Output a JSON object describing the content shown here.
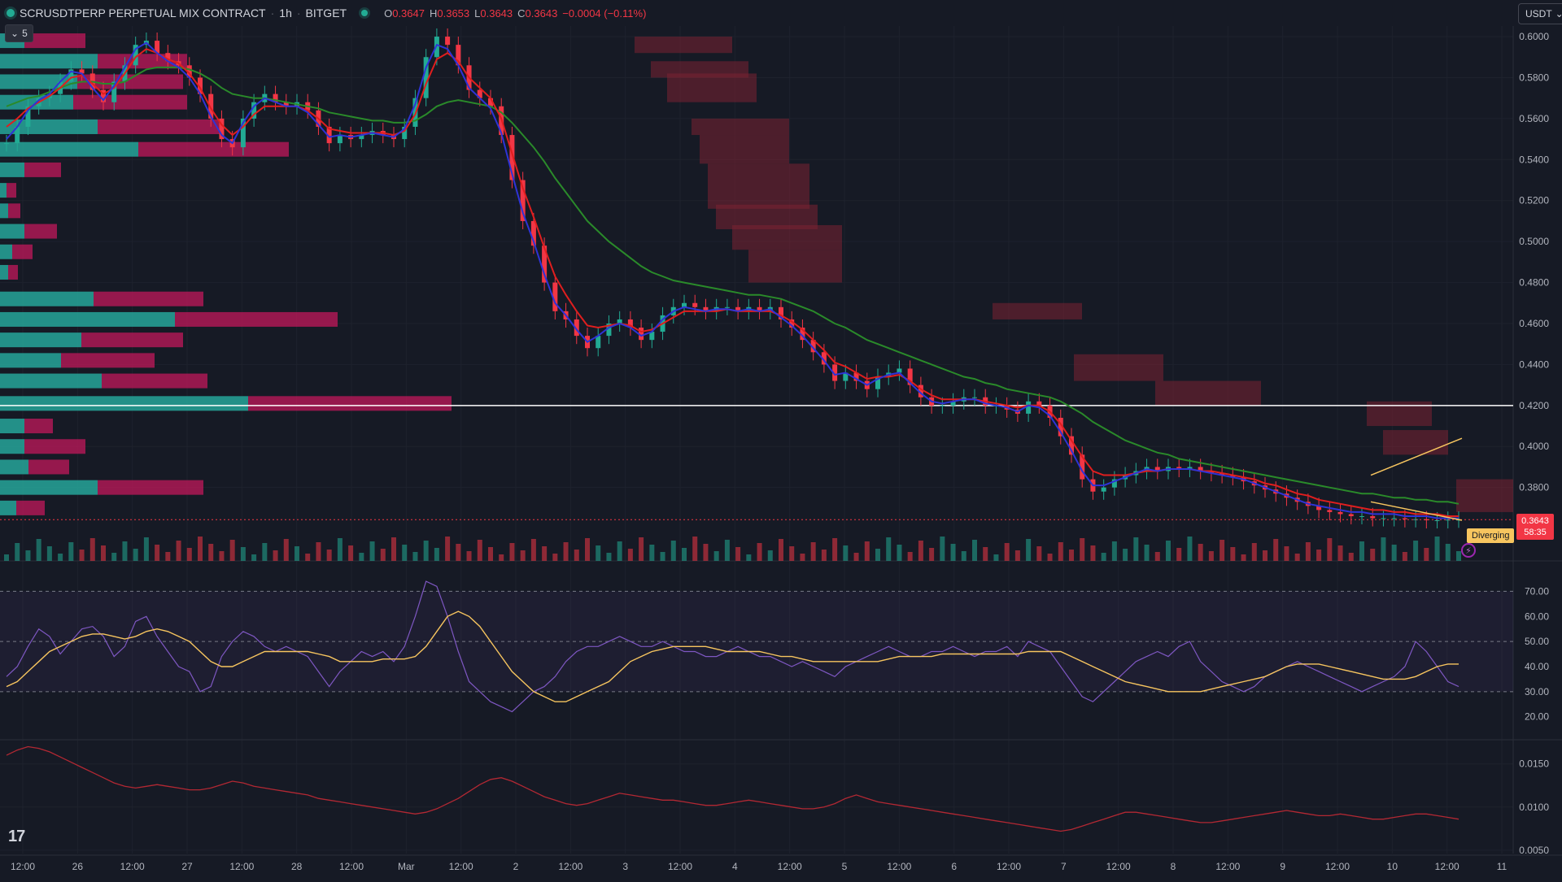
{
  "header": {
    "symbol": "SCRUSDTPERP PERPETUAL MIX CONTRACT",
    "interval": "1h",
    "exchange": "BITGET",
    "open_label": "O",
    "open": "0.3647",
    "high_label": "H",
    "high": "0.3653",
    "low_label": "L",
    "low": "0.3643",
    "close_label": "C",
    "close": "0.3643",
    "change": "−0.0004 (−0.11%)"
  },
  "controls": {
    "collapse_count": "5",
    "currency": "USDT"
  },
  "current_price": {
    "price": "0.3643",
    "countdown": "58:35"
  },
  "annotation": {
    "label": "Diverging"
  },
  "colors": {
    "background": "#161a25",
    "up": "#22ab94",
    "down": "#f23645",
    "ema_fast": "#2e33d6",
    "ema_mid": "#e01e1e",
    "ema_slow": "#2a8a2a",
    "rsi": "#7e57c2",
    "rsi_ma": "#f7c55f",
    "oscillator": "#b22833",
    "volume_profile_up": "#26a69a",
    "volume_profile_down": "#c2185b"
  },
  "chart_data": [
    {
      "type": "line",
      "name": "price-candles",
      "y_ticks": [
        "0.6000",
        "0.5800",
        "0.5600",
        "0.5400",
        "0.5200",
        "0.5000",
        "0.4800",
        "0.4600",
        "0.4400",
        "0.4200",
        "0.4000",
        "0.3800"
      ],
      "ylim": [
        0.364,
        0.602
      ],
      "x_ticks": [
        "12:00",
        "26",
        "12:00",
        "27",
        "12:00",
        "28",
        "12:00",
        "Mar",
        "12:00",
        "2",
        "12:00",
        "3",
        "12:00",
        "4",
        "12:00",
        "5",
        "12:00",
        "6",
        "12:00",
        "7",
        "12:00",
        "8",
        "12:00",
        "9",
        "12:00",
        "10",
        "12:00",
        "11"
      ],
      "x": [
        0,
        6,
        12,
        18,
        24,
        30,
        36,
        42,
        48,
        54,
        60,
        66,
        72,
        78,
        84,
        90,
        96,
        102,
        108,
        114,
        120,
        126,
        132,
        138,
        144,
        150,
        156,
        162,
        168,
        174,
        180,
        186,
        192,
        198,
        204,
        210,
        216,
        222,
        228,
        234,
        240,
        246,
        252,
        258,
        264,
        270,
        276,
        282,
        288,
        294,
        300,
        306,
        312,
        318,
        324,
        330,
        336,
        342,
        348,
        354,
        360,
        366,
        372,
        378,
        384,
        390,
        396,
        402,
        408,
        414,
        420,
        426,
        432,
        438,
        444,
        450,
        456,
        462,
        468,
        474,
        480,
        486,
        492,
        498,
        504,
        510,
        516,
        522,
        528,
        534,
        540,
        546,
        552,
        558,
        564,
        570,
        576,
        582,
        588,
        594,
        600,
        606,
        612,
        618,
        624,
        630,
        636,
        642,
        648,
        654,
        660,
        666,
        672,
        678,
        684,
        690,
        696,
        702,
        708,
        714,
        720,
        726,
        732,
        738,
        744,
        750,
        756,
        762,
        768,
        774,
        780,
        786,
        792,
        798,
        804,
        810
      ],
      "close": [
        0.548,
        0.556,
        0.566,
        0.57,
        0.572,
        0.578,
        0.584,
        0.582,
        0.574,
        0.568,
        0.578,
        0.586,
        0.596,
        0.598,
        0.592,
        0.588,
        0.586,
        0.58,
        0.572,
        0.56,
        0.55,
        0.546,
        0.56,
        0.568,
        0.572,
        0.568,
        0.566,
        0.568,
        0.564,
        0.556,
        0.548,
        0.552,
        0.55,
        0.552,
        0.554,
        0.552,
        0.55,
        0.556,
        0.57,
        0.59,
        0.6,
        0.596,
        0.586,
        0.574,
        0.57,
        0.566,
        0.552,
        0.53,
        0.51,
        0.498,
        0.48,
        0.466,
        0.462,
        0.454,
        0.448,
        0.454,
        0.46,
        0.462,
        0.458,
        0.452,
        0.456,
        0.464,
        0.468,
        0.47,
        0.468,
        0.466,
        0.468,
        0.468,
        0.466,
        0.468,
        0.466,
        0.468,
        0.462,
        0.458,
        0.452,
        0.446,
        0.44,
        0.432,
        0.436,
        0.432,
        0.428,
        0.434,
        0.436,
        0.438,
        0.43,
        0.424,
        0.42,
        0.42,
        0.422,
        0.424,
        0.424,
        0.42,
        0.42,
        0.418,
        0.416,
        0.422,
        0.42,
        0.414,
        0.405,
        0.396,
        0.384,
        0.378,
        0.38,
        0.384,
        0.386,
        0.388,
        0.39,
        0.388,
        0.39,
        0.389,
        0.39,
        0.388,
        0.387,
        0.386,
        0.385,
        0.383,
        0.381,
        0.379,
        0.377,
        0.375,
        0.373,
        0.371,
        0.369,
        0.368,
        0.367,
        0.366,
        0.366,
        0.365,
        0.365,
        0.365,
        0.3645,
        0.3645,
        0.364,
        0.364,
        0.3643,
        0.3643
      ],
      "ema_fast": [
        0.55,
        0.556,
        0.564,
        0.569,
        0.572,
        0.578,
        0.583,
        0.582,
        0.575,
        0.569,
        0.576,
        0.585,
        0.594,
        0.597,
        0.592,
        0.588,
        0.585,
        0.58,
        0.572,
        0.561,
        0.552,
        0.548,
        0.558,
        0.566,
        0.57,
        0.568,
        0.566,
        0.566,
        0.563,
        0.557,
        0.551,
        0.552,
        0.551,
        0.552,
        0.553,
        0.552,
        0.551,
        0.555,
        0.567,
        0.585,
        0.596,
        0.594,
        0.586,
        0.575,
        0.57,
        0.565,
        0.553,
        0.533,
        0.514,
        0.5,
        0.484,
        0.47,
        0.464,
        0.457,
        0.451,
        0.454,
        0.458,
        0.46,
        0.458,
        0.454,
        0.456,
        0.462,
        0.466,
        0.468,
        0.467,
        0.466,
        0.467,
        0.467,
        0.466,
        0.467,
        0.466,
        0.467,
        0.463,
        0.459,
        0.454,
        0.448,
        0.442,
        0.435,
        0.436,
        0.433,
        0.43,
        0.433,
        0.435,
        0.436,
        0.431,
        0.426,
        0.422,
        0.421,
        0.422,
        0.423,
        0.423,
        0.421,
        0.42,
        0.419,
        0.417,
        0.42,
        0.419,
        0.415,
        0.407,
        0.398,
        0.388,
        0.381,
        0.381,
        0.383,
        0.385,
        0.387,
        0.389,
        0.388,
        0.389,
        0.389,
        0.389,
        0.388,
        0.387,
        0.386,
        0.385,
        0.384,
        0.382,
        0.38,
        0.378,
        0.376,
        0.374,
        0.372,
        0.371,
        0.37,
        0.369,
        0.368,
        0.368,
        0.367,
        0.367,
        0.367,
        0.366,
        0.366,
        0.366,
        0.365,
        0.365,
        0.365
      ],
      "ema_mid": [
        0.556,
        0.56,
        0.565,
        0.568,
        0.571,
        0.575,
        0.58,
        0.581,
        0.577,
        0.572,
        0.575,
        0.582,
        0.59,
        0.594,
        0.592,
        0.589,
        0.587,
        0.582,
        0.575,
        0.565,
        0.557,
        0.552,
        0.556,
        0.562,
        0.566,
        0.566,
        0.566,
        0.566,
        0.564,
        0.56,
        0.555,
        0.554,
        0.553,
        0.553,
        0.553,
        0.553,
        0.552,
        0.554,
        0.562,
        0.577,
        0.589,
        0.592,
        0.588,
        0.58,
        0.575,
        0.57,
        0.56,
        0.543,
        0.526,
        0.512,
        0.497,
        0.483,
        0.474,
        0.466,
        0.459,
        0.458,
        0.459,
        0.46,
        0.459,
        0.456,
        0.457,
        0.46,
        0.463,
        0.466,
        0.466,
        0.466,
        0.466,
        0.467,
        0.466,
        0.466,
        0.466,
        0.466,
        0.464,
        0.461,
        0.457,
        0.452,
        0.447,
        0.441,
        0.439,
        0.436,
        0.433,
        0.434,
        0.434,
        0.435,
        0.432,
        0.428,
        0.425,
        0.423,
        0.423,
        0.423,
        0.423,
        0.422,
        0.421,
        0.42,
        0.419,
        0.42,
        0.42,
        0.417,
        0.411,
        0.403,
        0.395,
        0.388,
        0.386,
        0.386,
        0.386,
        0.387,
        0.388,
        0.388,
        0.389,
        0.389,
        0.389,
        0.388,
        0.388,
        0.387,
        0.386,
        0.385,
        0.384,
        0.382,
        0.381,
        0.379,
        0.377,
        0.376,
        0.374,
        0.373,
        0.372,
        0.371,
        0.37,
        0.369,
        0.369,
        0.368,
        0.368,
        0.367,
        0.367,
        0.367,
        0.366,
        0.366
      ],
      "ema_slow": [
        0.566,
        0.568,
        0.57,
        0.571,
        0.573,
        0.575,
        0.577,
        0.578,
        0.578,
        0.577,
        0.577,
        0.578,
        0.581,
        0.584,
        0.585,
        0.585,
        0.585,
        0.584,
        0.582,
        0.579,
        0.575,
        0.572,
        0.571,
        0.57,
        0.57,
        0.569,
        0.568,
        0.567,
        0.566,
        0.565,
        0.563,
        0.562,
        0.561,
        0.56,
        0.559,
        0.559,
        0.558,
        0.558,
        0.559,
        0.562,
        0.566,
        0.568,
        0.569,
        0.568,
        0.567,
        0.566,
        0.563,
        0.558,
        0.552,
        0.546,
        0.539,
        0.531,
        0.524,
        0.517,
        0.51,
        0.505,
        0.5,
        0.496,
        0.492,
        0.488,
        0.485,
        0.483,
        0.481,
        0.48,
        0.479,
        0.478,
        0.477,
        0.476,
        0.475,
        0.474,
        0.474,
        0.473,
        0.472,
        0.47,
        0.468,
        0.466,
        0.463,
        0.46,
        0.458,
        0.455,
        0.452,
        0.45,
        0.448,
        0.446,
        0.444,
        0.442,
        0.44,
        0.438,
        0.436,
        0.434,
        0.433,
        0.431,
        0.43,
        0.428,
        0.427,
        0.426,
        0.425,
        0.424,
        0.422,
        0.419,
        0.416,
        0.412,
        0.409,
        0.406,
        0.403,
        0.401,
        0.399,
        0.397,
        0.396,
        0.394,
        0.393,
        0.392,
        0.391,
        0.39,
        0.389,
        0.388,
        0.387,
        0.386,
        0.385,
        0.384,
        0.383,
        0.382,
        0.381,
        0.38,
        0.379,
        0.378,
        0.377,
        0.377,
        0.376,
        0.375,
        0.375,
        0.374,
        0.374,
        0.373,
        0.373,
        0.372
      ]
    },
    {
      "type": "line",
      "name": "rsi",
      "y_ticks": [
        "70.00",
        "60.00",
        "50.00",
        "40.00",
        "30.00",
        "20.00"
      ],
      "ylim": [
        16,
        75
      ],
      "levels": [
        70,
        50,
        30
      ],
      "series": [
        {
          "values": [
            36,
            40,
            48,
            55,
            52,
            45,
            50,
            55,
            56,
            52,
            44,
            48,
            58,
            60,
            52,
            46,
            40,
            38,
            30,
            32,
            44,
            50,
            54,
            52,
            48,
            46,
            48,
            46,
            44,
            38,
            32,
            38,
            42,
            46,
            44,
            46,
            42,
            48,
            60,
            74,
            72,
            60,
            46,
            34,
            30,
            26,
            24,
            22,
            26,
            30,
            32,
            36,
            42,
            46,
            48,
            48,
            50,
            52,
            50,
            48,
            48,
            50,
            48,
            46,
            46,
            44,
            44,
            46,
            48,
            46,
            44,
            44,
            42,
            40,
            42,
            40,
            38,
            36,
            40,
            42,
            44,
            46,
            48,
            46,
            44,
            44,
            46,
            46,
            48,
            46,
            44,
            46,
            46,
            48,
            44,
            50,
            48,
            46,
            40,
            34,
            28,
            26,
            30,
            34,
            38,
            42,
            44,
            46,
            44,
            48,
            50,
            42,
            38,
            34,
            32,
            30,
            32,
            36,
            38,
            40,
            42,
            40,
            38,
            36,
            34,
            32,
            30,
            32,
            34,
            36,
            40,
            50,
            46,
            40,
            34,
            32
          ]
        },
        {
          "values": [
            32,
            34,
            38,
            42,
            46,
            48,
            50,
            52,
            53,
            53,
            52,
            51,
            52,
            54,
            55,
            54,
            52,
            50,
            46,
            42,
            40,
            40,
            42,
            44,
            46,
            46,
            46,
            46,
            46,
            45,
            44,
            42,
            42,
            42,
            42,
            43,
            43,
            43,
            44,
            48,
            54,
            60,
            62,
            60,
            56,
            50,
            44,
            38,
            34,
            30,
            28,
            26,
            26,
            28,
            30,
            32,
            34,
            38,
            42,
            44,
            46,
            47,
            48,
            48,
            48,
            48,
            47,
            46,
            46,
            46,
            46,
            45,
            44,
            44,
            43,
            42,
            42,
            42,
            42,
            42,
            42,
            42,
            43,
            44,
            44,
            44,
            44,
            45,
            45,
            45,
            45,
            45,
            45,
            45,
            45,
            46,
            46,
            46,
            46,
            44,
            42,
            40,
            38,
            36,
            34,
            33,
            32,
            31,
            30,
            30,
            30,
            30,
            31,
            32,
            33,
            34,
            35,
            36,
            38,
            40,
            41,
            41,
            41,
            40,
            39,
            38,
            37,
            36,
            35,
            35,
            35,
            36,
            38,
            40,
            41,
            41
          ]
        }
      ]
    },
    {
      "type": "line",
      "name": "oscillator",
      "y_ticks": [
        "0.0150",
        "0.0100",
        "0.0050"
      ],
      "ylim": [
        0.0048,
        0.0178
      ],
      "values": [
        0.016,
        0.0166,
        0.017,
        0.0168,
        0.0164,
        0.0158,
        0.0152,
        0.0146,
        0.014,
        0.0134,
        0.0128,
        0.0124,
        0.0122,
        0.0124,
        0.0126,
        0.0124,
        0.0122,
        0.012,
        0.012,
        0.0122,
        0.0126,
        0.013,
        0.0128,
        0.0124,
        0.0122,
        0.012,
        0.0118,
        0.0116,
        0.0114,
        0.011,
        0.0108,
        0.0106,
        0.0104,
        0.0102,
        0.01,
        0.0098,
        0.0096,
        0.0094,
        0.0092,
        0.0094,
        0.0098,
        0.0104,
        0.011,
        0.0118,
        0.0126,
        0.0132,
        0.0134,
        0.013,
        0.0124,
        0.0118,
        0.0112,
        0.0108,
        0.0104,
        0.0102,
        0.0104,
        0.0108,
        0.0112,
        0.0116,
        0.0114,
        0.0112,
        0.011,
        0.0108,
        0.0108,
        0.0106,
        0.0104,
        0.0102,
        0.0102,
        0.0104,
        0.0106,
        0.0108,
        0.0106,
        0.0104,
        0.0102,
        0.01,
        0.0098,
        0.0098,
        0.01,
        0.0104,
        0.011,
        0.0114,
        0.011,
        0.0106,
        0.0104,
        0.0102,
        0.01,
        0.0098,
        0.0096,
        0.0094,
        0.0092,
        0.009,
        0.0088,
        0.0086,
        0.0084,
        0.0082,
        0.008,
        0.0078,
        0.0076,
        0.0074,
        0.0072,
        0.0074,
        0.0078,
        0.0082,
        0.0086,
        0.009,
        0.0094,
        0.0094,
        0.0092,
        0.009,
        0.0088,
        0.0086,
        0.0084,
        0.0082,
        0.0082,
        0.0084,
        0.0086,
        0.0088,
        0.009,
        0.0092,
        0.0094,
        0.0096,
        0.0094,
        0.0092,
        0.009,
        0.009,
        0.0092,
        0.009,
        0.0088,
        0.0086,
        0.0086,
        0.0088,
        0.009,
        0.0092,
        0.0092,
        0.009,
        0.0088,
        0.0086
      ]
    }
  ]
}
